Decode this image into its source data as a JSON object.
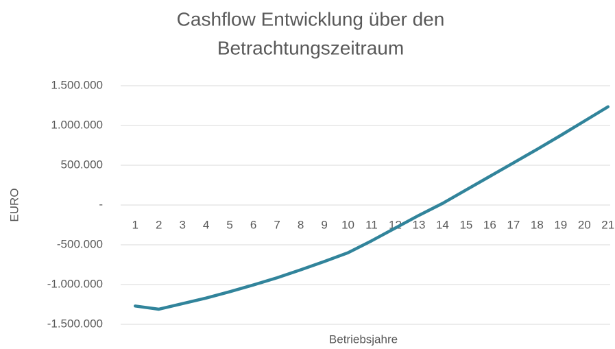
{
  "chart_data": {
    "type": "line",
    "title": [
      "Cashflow Entwicklung über den",
      "Betrachtungszeitraum"
    ],
    "x_label": "Betriebsjahre",
    "y_label": "EURO",
    "categories": [
      "1",
      "2",
      "3",
      "4",
      "5",
      "6",
      "7",
      "8",
      "9",
      "10",
      "11",
      "12",
      "13",
      "14",
      "15",
      "16",
      "17",
      "18",
      "19",
      "20",
      "21"
    ],
    "series": [
      {
        "name": "Cashflow",
        "color": "#31849b",
        "values": [
          -1270000,
          -1310000,
          -1240000,
          -1170000,
          -1090000,
          -1005000,
          -915000,
          -815000,
          -710000,
          -600000,
          -450000,
          -290000,
          -130000,
          20000,
          190000,
          360000,
          530000,
          700000,
          875000,
          1055000,
          1235000
        ]
      }
    ],
    "ylim": [
      -1500000,
      1500000
    ],
    "yticks": [
      {
        "value": -1500000,
        "label": "-1.500.000"
      },
      {
        "value": -1000000,
        "label": "-1.000.000"
      },
      {
        "value": -500000,
        "label": "-500.000"
      },
      {
        "value": 0,
        "label": "-"
      },
      {
        "value": 500000,
        "label": "500.000"
      },
      {
        "value": 1000000,
        "label": "1.000.000"
      },
      {
        "value": 1500000,
        "label": "1.500.000"
      }
    ],
    "grid": true
  }
}
